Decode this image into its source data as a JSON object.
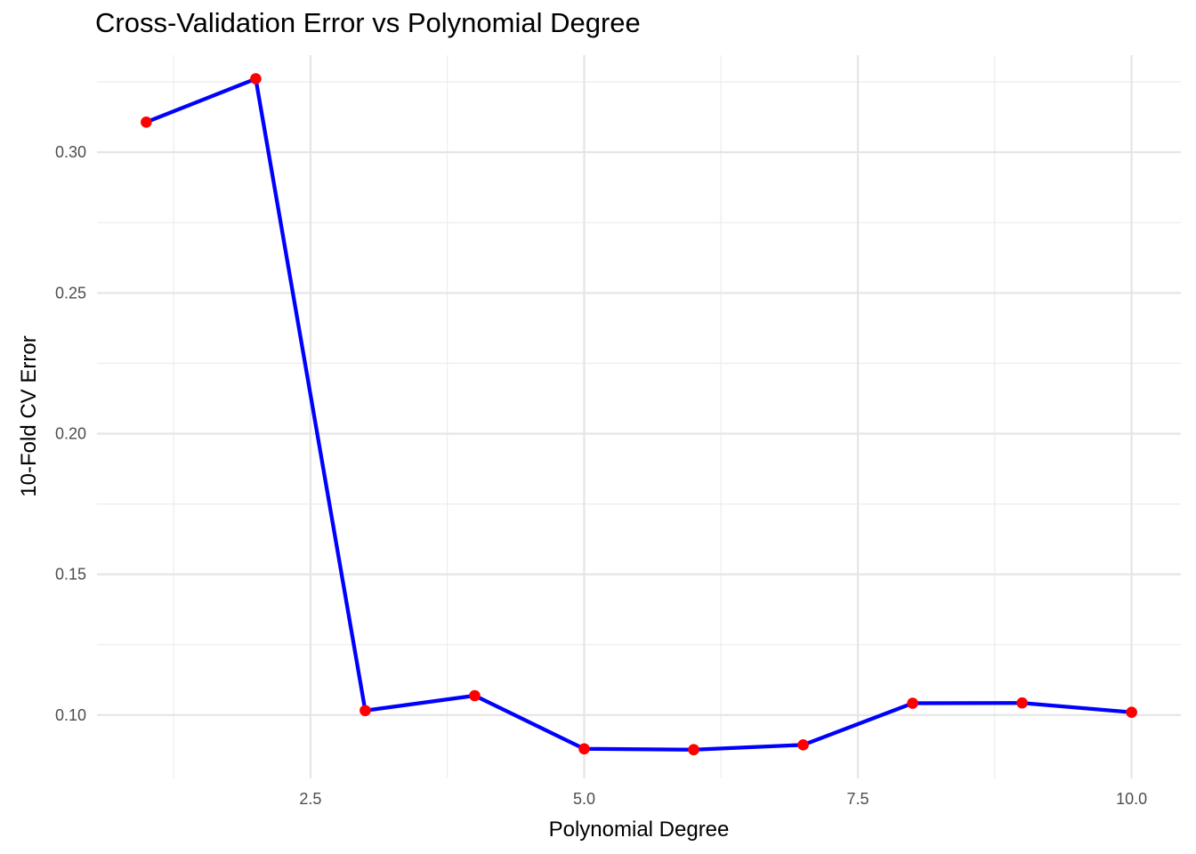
{
  "chart_data": {
    "type": "line",
    "title": "Cross-Validation Error vs Polynomial Degree",
    "xlabel": "Polynomial Degree",
    "ylabel": "10-Fold CV Error",
    "xlim": [
      0.55,
      10.45
    ],
    "ylim": [
      0.0775,
      0.3345
    ],
    "x_ticks": [
      2.5,
      5.0,
      7.5,
      10.0
    ],
    "x_tick_labels": [
      "2.5",
      "5.0",
      "7.5",
      "10.0"
    ],
    "y_ticks": [
      0.1,
      0.15,
      0.2,
      0.25,
      0.3
    ],
    "y_tick_labels": [
      "0.10",
      "0.15",
      "0.20",
      "0.25",
      "0.30"
    ],
    "grid": true,
    "series": [
      {
        "x": [
          1,
          2,
          3,
          4,
          5,
          6,
          7,
          8,
          9,
          10
        ],
        "values": [
          0.3107,
          0.3261,
          0.1016,
          0.1069,
          0.088,
          0.0877,
          0.0894,
          0.1042,
          0.1043,
          0.101
        ],
        "line_color": "#0000ff",
        "point_color": "#ff0000"
      }
    ]
  }
}
